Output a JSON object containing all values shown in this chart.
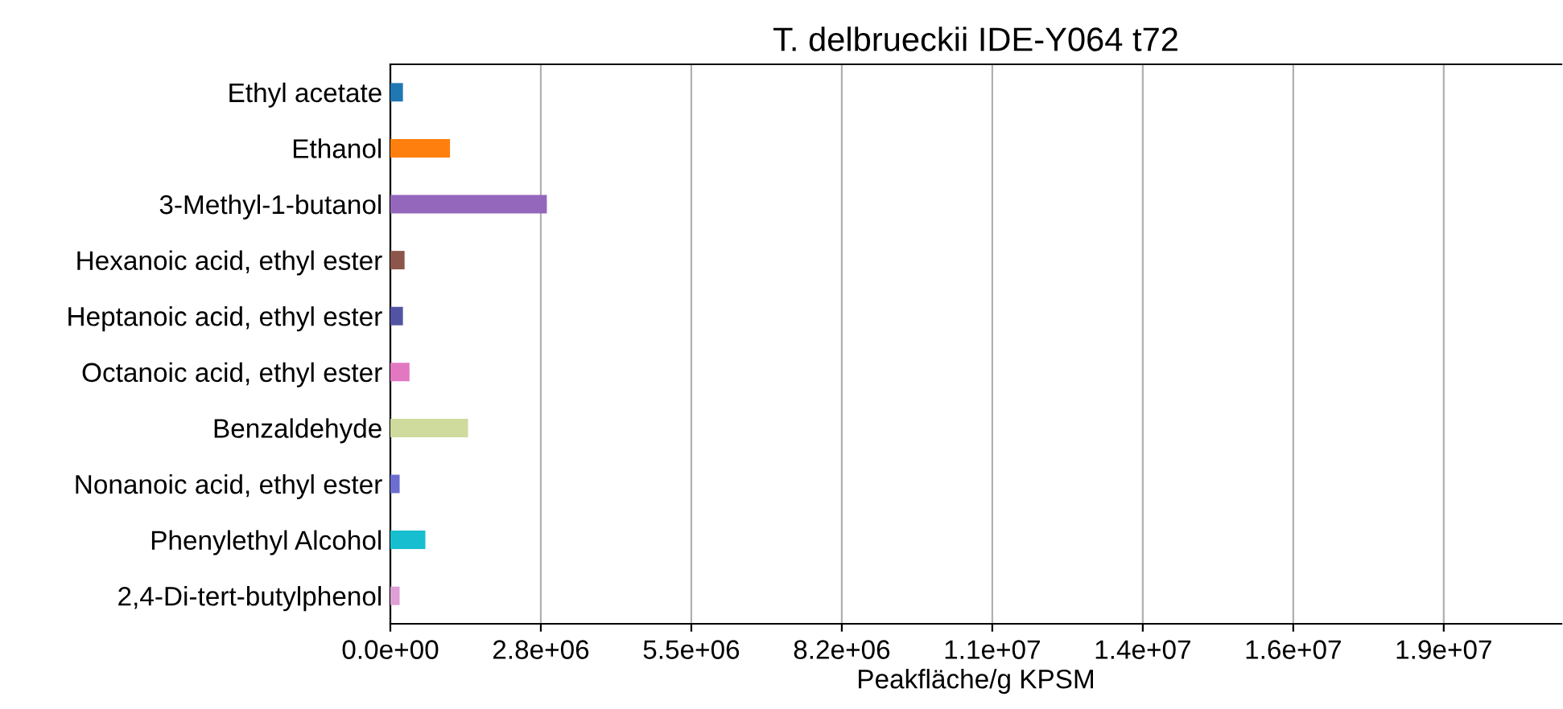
{
  "chart_data": {
    "type": "bar",
    "orientation": "horizontal",
    "title": "T. delbrueckii IDE-Y064 t72",
    "xlabel": "Peakfläche/g KPSM",
    "categories": [
      "Ethyl acetate",
      "Ethanol",
      "3-Methyl-1-butanol",
      "Hexanoic acid, ethyl ester",
      "Heptanoic acid, ethyl ester",
      "Octanoic acid, ethyl ester",
      "Benzaldehyde",
      "Nonanoic acid, ethyl ester",
      "Phenylethyl Alcohol",
      "2,4-Di-tert-butylphenol"
    ],
    "values": [
      230000,
      1090000,
      2860000,
      260000,
      230000,
      350000,
      1420000,
      170000,
      640000,
      170000
    ],
    "colors": [
      "#1f77b4",
      "#ff7f0e",
      "#9467bd",
      "#8c564b",
      "#5254a3",
      "#e377c2",
      "#cedb9c",
      "#6b6ecf",
      "#17becf",
      "#de9ed6"
    ],
    "xlim": [
      0,
      21400000
    ],
    "xticks": [
      {
        "value": 0,
        "label": "0.0e+00"
      },
      {
        "value": 2750000,
        "label": "2.8e+06"
      },
      {
        "value": 5500000,
        "label": "5.5e+06"
      },
      {
        "value": 8250000,
        "label": "8.2e+06"
      },
      {
        "value": 11000000,
        "label": "1.1e+07"
      },
      {
        "value": 13750000,
        "label": "1.4e+07"
      },
      {
        "value": 16500000,
        "label": "1.6e+07"
      },
      {
        "value": 19250000,
        "label": "1.9e+07"
      }
    ],
    "grid": "x"
  }
}
